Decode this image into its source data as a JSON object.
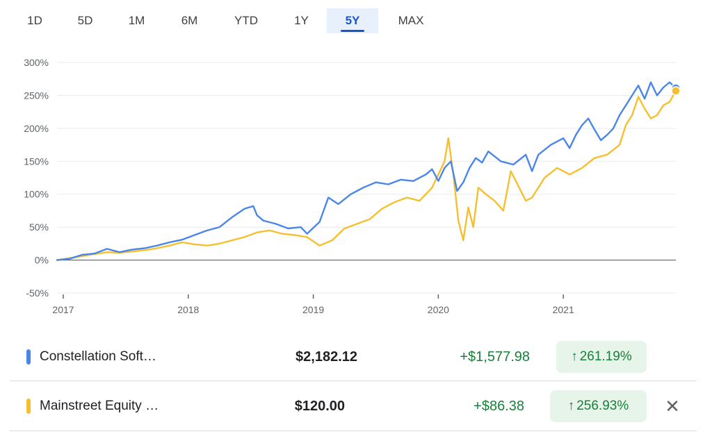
{
  "tabs": [
    "1D",
    "5D",
    "1M",
    "6M",
    "YTD",
    "1Y",
    "5Y",
    "MAX"
  ],
  "active_tab": "5Y",
  "colors": {
    "series1": "#4a86e8",
    "series2": "#f6bf2f",
    "positive": "#188038",
    "positive_bg": "#e6f4ea"
  },
  "chart_data": {
    "type": "line",
    "title": "",
    "xlabel": "",
    "ylabel": "",
    "ylim": [
      -50,
      300
    ],
    "xlim": [
      2016.95,
      2021.9
    ],
    "y_ticks": [
      -50,
      0,
      50,
      100,
      150,
      200,
      250,
      300
    ],
    "y_tick_labels": [
      "-50%",
      "0%",
      "50%",
      "100%",
      "150%",
      "200%",
      "250%",
      "300%"
    ],
    "x_ticks": [
      2017,
      2018,
      2019,
      2020,
      2021
    ],
    "x_tick_labels": [
      "2017",
      "2018",
      "2019",
      "2020",
      "2021"
    ],
    "grid": true,
    "series": [
      {
        "name": "Constellation Soft…",
        "x": [
          2016.95,
          2017.05,
          2017.15,
          2017.25,
          2017.35,
          2017.45,
          2017.55,
          2017.65,
          2017.75,
          2017.85,
          2017.95,
          2018.05,
          2018.15,
          2018.25,
          2018.35,
          2018.45,
          2018.52,
          2018.55,
          2018.6,
          2018.7,
          2018.8,
          2018.9,
          2018.95,
          2019.05,
          2019.12,
          2019.2,
          2019.3,
          2019.4,
          2019.5,
          2019.6,
          2019.7,
          2019.8,
          2019.9,
          2019.95,
          2020.0,
          2020.05,
          2020.1,
          2020.15,
          2020.2,
          2020.25,
          2020.3,
          2020.35,
          2020.4,
          2020.5,
          2020.6,
          2020.7,
          2020.75,
          2020.8,
          2020.9,
          2021.0,
          2021.05,
          2021.1,
          2021.15,
          2021.2,
          2021.25,
          2021.3,
          2021.35,
          2021.4,
          2021.45,
          2021.5,
          2021.55,
          2021.6,
          2021.65,
          2021.7,
          2021.75,
          2021.8,
          2021.85,
          2021.9
        ],
        "y": [
          0,
          2,
          8,
          10,
          17,
          12,
          16,
          18,
          22,
          27,
          31,
          38,
          45,
          50,
          65,
          78,
          82,
          68,
          60,
          55,
          48,
          50,
          40,
          58,
          95,
          85,
          100,
          110,
          118,
          115,
          122,
          120,
          130,
          138,
          120,
          140,
          150,
          105,
          118,
          140,
          155,
          148,
          165,
          150,
          145,
          160,
          135,
          160,
          175,
          185,
          170,
          190,
          205,
          215,
          198,
          182,
          190,
          200,
          220,
          235,
          250,
          265,
          245,
          270,
          250,
          262,
          270,
          261.19
        ]
      },
      {
        "name": "Mainstreet Equity …",
        "x": [
          2016.95,
          2017.05,
          2017.15,
          2017.25,
          2017.35,
          2017.45,
          2017.55,
          2017.65,
          2017.75,
          2017.85,
          2017.95,
          2018.05,
          2018.15,
          2018.25,
          2018.35,
          2018.45,
          2018.55,
          2018.65,
          2018.75,
          2018.85,
          2018.95,
          2019.05,
          2019.15,
          2019.25,
          2019.35,
          2019.45,
          2019.55,
          2019.65,
          2019.75,
          2019.85,
          2019.95,
          2020.0,
          2020.05,
          2020.08,
          2020.12,
          2020.16,
          2020.2,
          2020.24,
          2020.28,
          2020.32,
          2020.38,
          2020.45,
          2020.52,
          2020.58,
          2020.62,
          2020.7,
          2020.75,
          2020.85,
          2020.95,
          2021.05,
          2021.15,
          2021.25,
          2021.35,
          2021.45,
          2021.5,
          2021.55,
          2021.6,
          2021.65,
          2021.7,
          2021.75,
          2021.8,
          2021.85,
          2021.9
        ],
        "y": [
          0,
          3,
          6,
          9,
          12,
          11,
          13,
          15,
          18,
          22,
          27,
          24,
          22,
          25,
          30,
          35,
          42,
          45,
          40,
          38,
          35,
          22,
          30,
          48,
          55,
          62,
          78,
          88,
          95,
          90,
          110,
          130,
          150,
          185,
          130,
          60,
          30,
          80,
          50,
          110,
          100,
          90,
          75,
          135,
          120,
          90,
          95,
          125,
          140,
          130,
          140,
          155,
          160,
          175,
          205,
          220,
          248,
          230,
          215,
          220,
          235,
          240,
          256.93
        ]
      }
    ],
    "end_markers": true
  },
  "legend": [
    {
      "name": "Constellation Soft…",
      "price": "$2,182.12",
      "change": "+$1,577.98",
      "pct": "261.19%"
    },
    {
      "name": "Mainstreet Equity …",
      "price": "$120.00",
      "change": "+$86.38",
      "pct": "256.93%"
    }
  ],
  "icons": {
    "up_arrow": "↑",
    "close": "✕"
  }
}
